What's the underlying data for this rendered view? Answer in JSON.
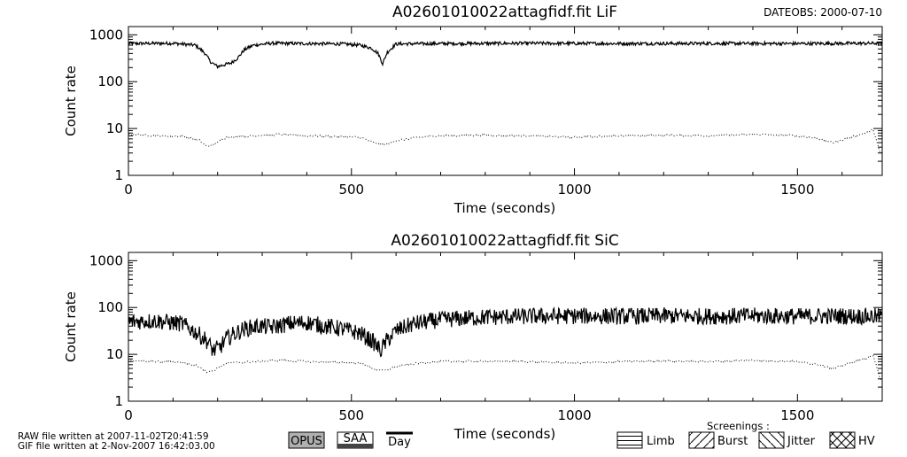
{
  "dateobs": "DATEOBS: 2000-07-10",
  "chart_data": [
    {
      "type": "line",
      "title": "A02601010022attagfidf.fit  LiF",
      "xlabel": "Time (seconds)",
      "ylabel": "Count rate",
      "xlim": [
        0,
        1690
      ],
      "ylim": [
        1,
        1500
      ],
      "yscale": "log",
      "xticks": [
        "0",
        "500",
        "1000",
        "1500"
      ],
      "yticks": [
        "1",
        "10",
        "100",
        "1000"
      ],
      "series": [
        {
          "style": "solid",
          "x": [
            0,
            100,
            150,
            170,
            185,
            200,
            215,
            230,
            245,
            260,
            280,
            320,
            400,
            480,
            520,
            545,
            560,
            570,
            580,
            600,
            700,
            900,
            1100,
            1300,
            1500,
            1690
          ],
          "y": [
            650,
            660,
            600,
            420,
            260,
            210,
            230,
            250,
            320,
            480,
            600,
            660,
            650,
            640,
            600,
            520,
            400,
            240,
            420,
            640,
            650,
            660,
            650,
            655,
            650,
            660
          ]
        },
        {
          "style": "dotted",
          "x": [
            0,
            60,
            120,
            160,
            175,
            190,
            220,
            280,
            340,
            400,
            460,
            520,
            555,
            575,
            600,
            650,
            700,
            800,
            900,
            1000,
            1100,
            1200,
            1300,
            1400,
            1500,
            1550,
            1580,
            1620,
            1650,
            1670,
            1685
          ],
          "y": [
            7.5,
            7,
            6.8,
            5.5,
            4.2,
            4.5,
            6.5,
            7,
            7.5,
            7,
            6.8,
            6.5,
            4.8,
            4.5,
            5.5,
            6.5,
            7,
            7.2,
            7,
            6.5,
            7,
            7.2,
            7,
            7.5,
            7,
            6,
            5,
            6.5,
            8,
            9.5,
            3
          ]
        }
      ]
    },
    {
      "type": "line",
      "title": "A02601010022attagfidf.fit  SiC",
      "xlabel": "Time (seconds)",
      "ylabel": "Count rate",
      "xlim": [
        0,
        1690
      ],
      "ylim": [
        1,
        1500
      ],
      "yscale": "log",
      "xticks": [
        "0",
        "500",
        "1000",
        "1500"
      ],
      "yticks": [
        "1",
        "10",
        "100",
        "1000"
      ],
      "series": [
        {
          "style": "solid",
          "x": [
            0,
            60,
            120,
            150,
            175,
            190,
            205,
            220,
            240,
            260,
            290,
            320,
            360,
            400,
            440,
            480,
            520,
            550,
            565,
            580,
            600,
            640,
            700,
            800,
            900,
            1000,
            1100,
            1200,
            1300,
            1400,
            1500,
            1600,
            1690
          ],
          "y": [
            50,
            52,
            45,
            30,
            20,
            12,
            14,
            22,
            28,
            35,
            40,
            38,
            45,
            48,
            40,
            35,
            28,
            18,
            12,
            20,
            32,
            45,
            55,
            62,
            65,
            66,
            65,
            66,
            65,
            66,
            65,
            66,
            64
          ]
        },
        {
          "style": "dotted",
          "x": [
            0,
            60,
            120,
            160,
            175,
            190,
            220,
            280,
            340,
            400,
            460,
            520,
            555,
            575,
            600,
            650,
            700,
            800,
            900,
            1000,
            1100,
            1200,
            1300,
            1400,
            1500,
            1550,
            1580,
            1620,
            1650,
            1670,
            1685
          ],
          "y": [
            7.5,
            7,
            6.8,
            5.5,
            4.2,
            4.5,
            6.5,
            7,
            7.5,
            7,
            6.8,
            6.5,
            4.8,
            4.5,
            5.5,
            6.5,
            7,
            7.2,
            7,
            6.5,
            7,
            7.2,
            7,
            7.5,
            7,
            6,
            5,
            6.5,
            8,
            9.5,
            3
          ]
        }
      ]
    }
  ],
  "footer": {
    "raw_line": "RAW file written at 2007-11-02T20:41:59",
    "gif_line": "GIF file written at  2-Nov-2007 16:42:03.00",
    "opus": "OPUS",
    "saa": "SAA",
    "day": "Day",
    "screenings": "Screenings :",
    "limb": "Limb",
    "burst": "Burst",
    "jitter": "Jitter",
    "hv": "HV"
  }
}
